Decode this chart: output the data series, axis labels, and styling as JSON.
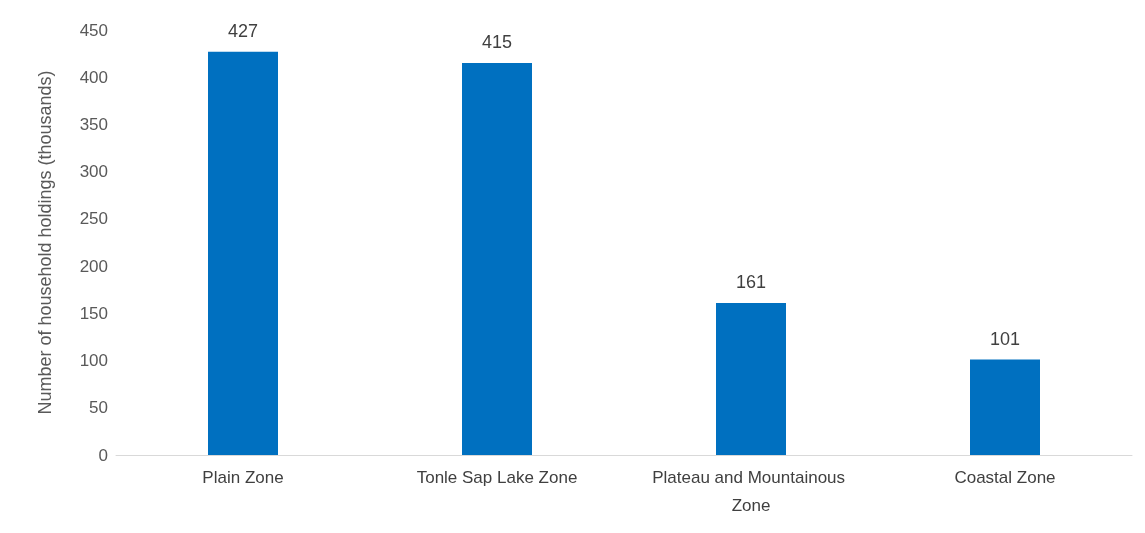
{
  "chart_data": {
    "type": "bar",
    "ylabel": "Number of household holdings (thousands)",
    "categories": [
      "Plain Zone",
      "Tonle Sap Lake Zone",
      "Plateau and Mountainous Zone",
      "Coastal Zone"
    ],
    "values": [
      427,
      415,
      161,
      101
    ],
    "color": "#0070c0",
    "ylim": [
      0,
      450
    ],
    "yticks": [
      0,
      50,
      100,
      150,
      200,
      250,
      300,
      350,
      400,
      450
    ],
    "grid": false,
    "data_labels": true
  }
}
